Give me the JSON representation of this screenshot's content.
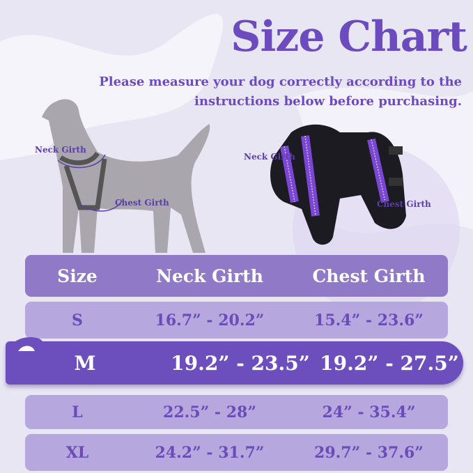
{
  "header": {
    "title": "Size Chart",
    "subtitle_line1": "Please measure your dog correctly according to the",
    "subtitle_line2": "instructions below before purchasing."
  },
  "illustrations": {
    "dog_labels": {
      "neck": "Neck Girth",
      "chest": "Chest Girth"
    },
    "harness_labels": {
      "neck": "Neck Girth",
      "chest": "Chest Girth"
    }
  },
  "table": {
    "columns": [
      "Size",
      "Neck Girth",
      "Chest Girth"
    ],
    "rows": [
      {
        "size": "S",
        "neck": "16.7” - 20.2”",
        "chest": "15.4” - 23.6”"
      },
      {
        "size": "M",
        "neck": "19.2” - 23.5”",
        "chest": "19.2” - 27.5”",
        "highlighted": true
      },
      {
        "size": "L",
        "neck": "22.5” - 28”",
        "chest": "24” - 35.4”"
      },
      {
        "size": "XL",
        "neck": "24.2” - 31.7”",
        "chest": "29.7” - 37.6”"
      }
    ]
  },
  "colors": {
    "accent": "#6b4bbd",
    "header_row": "#907ac8",
    "row": "#b6a7de",
    "highlight_row": "#6c4fbc",
    "background": "#e9e6f4"
  }
}
